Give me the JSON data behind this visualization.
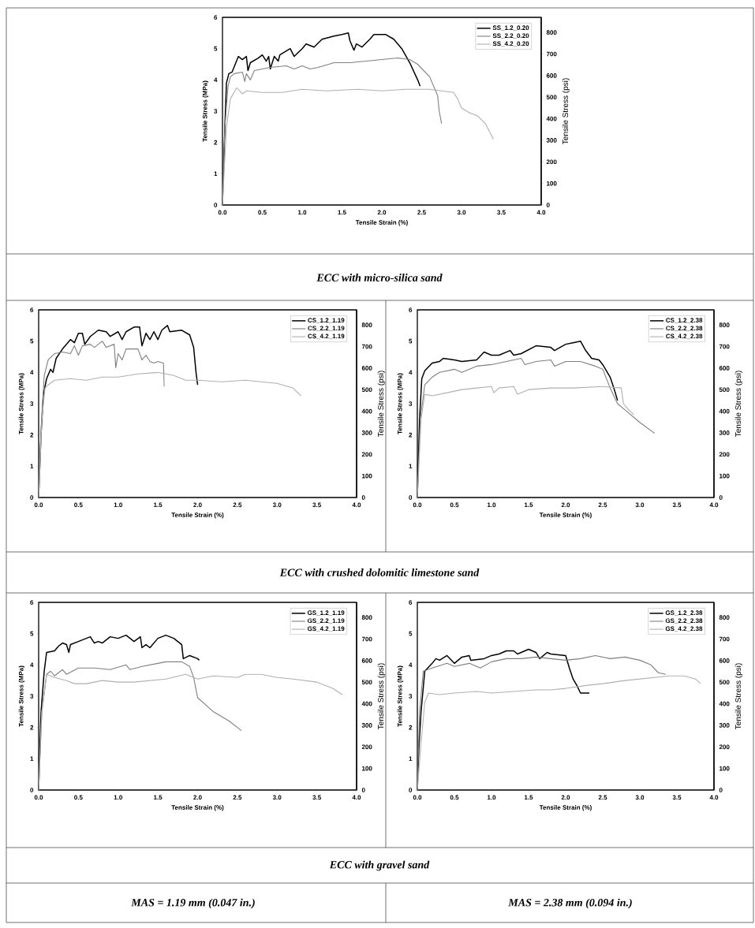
{
  "chart_data": [
    {
      "type": "line",
      "xlabel": "Tensile Strain (%)",
      "ylabel": "Tensile Stress (MPa)",
      "y2label": "Tensile Stress (psi)",
      "xlim": [
        0,
        4
      ],
      "xticks": [
        {
          "value": 0,
          "label": "0.0"
        },
        {
          "value": 0.5,
          "label": "0.5"
        },
        {
          "value": 1,
          "label": "1.0"
        },
        {
          "value": 1.5,
          "label": "1.5"
        },
        {
          "value": 2,
          "label": "2.0"
        },
        {
          "value": 2.5,
          "label": "2.5"
        },
        {
          "value": 3,
          "label": "3.0"
        },
        {
          "value": 3.5,
          "label": "3.5"
        },
        {
          "value": 4,
          "label": "4.0"
        }
      ],
      "ylim": [
        0,
        6
      ],
      "yticks": [
        0,
        1,
        2,
        3,
        4,
        5,
        6
      ],
      "y2lim": [
        0,
        870.2
      ],
      "y2ticks": [
        0,
        100,
        200,
        300,
        400,
        500,
        600,
        700,
        800
      ],
      "legend": "top right",
      "marker": "none",
      "line_style": "solid",
      "annotations": [
        "ECC with micro-silica sand"
      ],
      "series": [
        {
          "name": "SS_1.2_0.20",
          "color": "#000000",
          "x": [
            0,
            0.03,
            0.05,
            0.08,
            0.12,
            0.2,
            0.25,
            0.3,
            0.32,
            0.35,
            0.45,
            0.5,
            0.55,
            0.58,
            0.6,
            0.65,
            0.7,
            0.72,
            0.85,
            0.9,
            1.0,
            1.05,
            1.15,
            1.25,
            1.4,
            1.5,
            1.58,
            1.6,
            1.65,
            1.68,
            1.75,
            1.85,
            1.9,
            2.05,
            2.15,
            2.25,
            2.35,
            2.45,
            2.48
          ],
          "values": [
            0,
            2.5,
            3.9,
            4.2,
            4.25,
            4.75,
            4.65,
            4.75,
            4.3,
            4.55,
            4.7,
            4.8,
            4.6,
            4.75,
            4.35,
            4.75,
            4.6,
            4.8,
            5.0,
            4.75,
            5.0,
            5.15,
            5.05,
            5.3,
            5.4,
            5.45,
            5.5,
            5.25,
            4.95,
            5.15,
            5.05,
            5.3,
            5.45,
            5.45,
            5.3,
            5.0,
            4.55,
            4.0,
            3.8
          ]
        },
        {
          "name": "SS_2.2_0.20",
          "color": "#7f7f7f",
          "x": [
            0,
            0.03,
            0.07,
            0.1,
            0.15,
            0.25,
            0.28,
            0.3,
            0.35,
            0.4,
            0.5,
            0.6,
            0.8,
            0.9,
            1.0,
            1.1,
            1.2,
            1.4,
            1.6,
            1.8,
            2.0,
            2.2,
            2.35,
            2.45,
            2.6,
            2.7,
            2.72,
            2.75
          ],
          "values": [
            0,
            2.5,
            3.8,
            4.1,
            4.2,
            4.25,
            3.95,
            4.2,
            4.0,
            4.3,
            4.35,
            4.4,
            4.45,
            4.35,
            4.45,
            4.35,
            4.4,
            4.55,
            4.55,
            4.6,
            4.65,
            4.7,
            4.65,
            4.5,
            4.1,
            3.5,
            3.0,
            2.6
          ]
        },
        {
          "name": "SS_4.2_0.20",
          "color": "#b0b0b0",
          "x": [
            0,
            0.05,
            0.1,
            0.18,
            0.25,
            0.3,
            0.5,
            0.75,
            1.0,
            1.3,
            1.7,
            2.0,
            2.3,
            2.6,
            2.9,
            2.95,
            3.0,
            3.1,
            3.2,
            3.3,
            3.4
          ],
          "values": [
            0,
            2.5,
            3.4,
            3.75,
            3.55,
            3.65,
            3.6,
            3.6,
            3.7,
            3.65,
            3.7,
            3.65,
            3.7,
            3.7,
            3.6,
            3.4,
            3.1,
            2.95,
            2.85,
            2.6,
            2.1
          ]
        }
      ]
    },
    {
      "type": "line",
      "xlabel": "Tensile Strain (%)",
      "ylabel": "Tensile Stress (MPa)",
      "y2label": "Tensile Stress (psi)",
      "xlim": [
        0,
        4
      ],
      "xticks": [
        {
          "value": 0,
          "label": "0.0"
        },
        {
          "value": 0.5,
          "label": "0.5"
        },
        {
          "value": 1,
          "label": "1.0"
        },
        {
          "value": 1.5,
          "label": "1.5"
        },
        {
          "value": 2,
          "label": "2.0"
        },
        {
          "value": 2.5,
          "label": "2.5"
        },
        {
          "value": 3,
          "label": "3.0"
        },
        {
          "value": 3.5,
          "label": "3.5"
        },
        {
          "value": 4,
          "label": "4.0"
        }
      ],
      "ylim": [
        0,
        6
      ],
      "yticks": [
        0,
        1,
        2,
        3,
        4,
        5,
        6
      ],
      "y2lim": [
        0,
        870.2
      ],
      "y2ticks": [
        0,
        100,
        200,
        300,
        400,
        500,
        600,
        700,
        800
      ],
      "legend": "top right",
      "marker": "none",
      "line_style": "solid",
      "annotations": [
        "ECC with crushed dolomitic limestone sand"
      ],
      "series": [
        {
          "name": "CS_1.2_1.19",
          "color": "#000000",
          "x": [
            0,
            0.03,
            0.06,
            0.1,
            0.15,
            0.18,
            0.22,
            0.3,
            0.4,
            0.45,
            0.5,
            0.55,
            0.58,
            0.65,
            0.75,
            0.85,
            0.9,
            1.0,
            1.05,
            1.1,
            1.2,
            1.27,
            1.3,
            1.35,
            1.4,
            1.45,
            1.5,
            1.55,
            1.62,
            1.65,
            1.8,
            1.9,
            1.95,
            1.98,
            2.0
          ],
          "values": [
            0,
            2.0,
            3.3,
            3.8,
            4.1,
            4.0,
            4.45,
            4.75,
            5.05,
            4.95,
            5.25,
            5.25,
            4.9,
            5.15,
            5.35,
            5.3,
            5.15,
            5.3,
            5.05,
            5.3,
            5.45,
            5.45,
            4.85,
            5.25,
            5.05,
            5.3,
            5.05,
            5.35,
            5.5,
            5.3,
            5.35,
            5.2,
            4.8,
            4.0,
            3.6
          ]
        },
        {
          "name": "CS_2.2_1.19",
          "color": "#7f7f7f",
          "x": [
            0,
            0.03,
            0.07,
            0.12,
            0.2,
            0.3,
            0.4,
            0.45,
            0.5,
            0.55,
            0.65,
            0.7,
            0.8,
            0.85,
            0.95,
            0.97,
            1.0,
            1.05,
            1.1,
            1.25,
            1.3,
            1.35,
            1.4,
            1.45,
            1.5,
            1.57,
            1.58
          ],
          "values": [
            0,
            2.2,
            3.9,
            4.4,
            4.6,
            4.65,
            4.6,
            4.85,
            4.55,
            4.85,
            4.9,
            4.8,
            5.0,
            4.8,
            4.9,
            4.15,
            4.6,
            4.4,
            4.75,
            4.75,
            4.4,
            4.55,
            4.35,
            4.3,
            4.35,
            4.3,
            3.55
          ]
        },
        {
          "name": "CS_4.2_1.19",
          "color": "#b0b0b0",
          "x": [
            0,
            0.04,
            0.08,
            0.12,
            0.2,
            0.4,
            0.6,
            0.8,
            1.0,
            1.25,
            1.5,
            1.7,
            1.85,
            2.0,
            2.3,
            2.6,
            2.8,
            3.0,
            3.2,
            3.3
          ],
          "values": [
            0,
            2.5,
            3.5,
            3.6,
            3.75,
            3.8,
            3.75,
            3.85,
            3.85,
            3.95,
            4.0,
            3.9,
            3.75,
            3.75,
            3.7,
            3.75,
            3.7,
            3.65,
            3.5,
            3.25
          ]
        }
      ]
    },
    {
      "type": "line",
      "xlabel": "Tensile Strain (%)",
      "ylabel": "Tensile Stress (MPa)",
      "y2label": "Tensile Stress (psi)",
      "xlim": [
        0,
        4
      ],
      "xticks": [
        {
          "value": 0,
          "label": "0.0"
        },
        {
          "value": 0.5,
          "label": "0.5"
        },
        {
          "value": 1,
          "label": "1.0"
        },
        {
          "value": 1.5,
          "label": "1.5"
        },
        {
          "value": 2,
          "label": "2.0"
        },
        {
          "value": 2.5,
          "label": "2.5"
        },
        {
          "value": 3,
          "label": "3.0"
        },
        {
          "value": 3.5,
          "label": "3.5"
        },
        {
          "value": 4,
          "label": "4.0"
        }
      ],
      "ylim": [
        0,
        6
      ],
      "yticks": [
        0,
        1,
        2,
        3,
        4,
        5,
        6
      ],
      "y2lim": [
        0,
        870.2
      ],
      "y2ticks": [
        0,
        100,
        200,
        300,
        400,
        500,
        600,
        700,
        800
      ],
      "legend": "top right",
      "marker": "none",
      "line_style": "solid",
      "series": [
        {
          "name": "CS_1.2_2.38",
          "color": "#000000",
          "x": [
            0,
            0.03,
            0.06,
            0.1,
            0.2,
            0.3,
            0.35,
            0.5,
            0.6,
            0.8,
            0.9,
            1.0,
            1.1,
            1.25,
            1.3,
            1.4,
            1.6,
            1.8,
            1.85,
            2.0,
            2.1,
            2.2,
            2.27,
            2.35,
            2.45,
            2.5,
            2.6,
            2.65,
            2.7
          ],
          "values": [
            0,
            2.5,
            3.8,
            4.05,
            4.3,
            4.35,
            4.45,
            4.4,
            4.35,
            4.4,
            4.65,
            4.55,
            4.55,
            4.7,
            4.55,
            4.6,
            4.85,
            4.8,
            4.7,
            4.9,
            4.95,
            5.0,
            4.7,
            4.45,
            4.4,
            4.25,
            3.85,
            3.5,
            3.1
          ]
        },
        {
          "name": "CS_2.2_2.38",
          "color": "#7f7f7f",
          "x": [
            0,
            0.04,
            0.1,
            0.2,
            0.3,
            0.5,
            0.6,
            0.8,
            1.0,
            1.2,
            1.4,
            1.45,
            1.6,
            1.8,
            1.85,
            2.0,
            2.2,
            2.4,
            2.5,
            2.6,
            2.7,
            2.8,
            3.0,
            3.2
          ],
          "values": [
            0,
            2.5,
            3.6,
            3.85,
            4.0,
            4.1,
            4.0,
            4.2,
            4.25,
            4.35,
            4.45,
            4.25,
            4.35,
            4.4,
            4.2,
            4.35,
            4.35,
            4.2,
            4.1,
            3.5,
            3.0,
            2.8,
            2.4,
            2.05
          ]
        },
        {
          "name": "CS_4.2_2.38",
          "color": "#b0b0b0",
          "x": [
            0,
            0.05,
            0.1,
            0.2,
            0.4,
            0.6,
            0.8,
            1.0,
            1.03,
            1.1,
            1.3,
            1.35,
            1.5,
            1.8,
            2.1,
            2.5,
            2.75,
            2.78,
            2.85,
            2.92
          ],
          "values": [
            0,
            2.5,
            3.3,
            3.25,
            3.35,
            3.45,
            3.5,
            3.55,
            3.35,
            3.5,
            3.55,
            3.3,
            3.45,
            3.5,
            3.5,
            3.55,
            3.5,
            3.0,
            2.8,
            2.65
          ]
        }
      ]
    },
    {
      "type": "line",
      "xlabel": "Tensile Strain (%)",
      "ylabel": "Tensile Stress (MPa)",
      "y2label": "Tensile Stress (psi)",
      "xlim": [
        0,
        4
      ],
      "xticks": [
        {
          "value": 0,
          "label": "0.0"
        },
        {
          "value": 0.5,
          "label": "0.5"
        },
        {
          "value": 1,
          "label": "1.0"
        },
        {
          "value": 1.5,
          "label": "1.5"
        },
        {
          "value": 2,
          "label": "2.0"
        },
        {
          "value": 2.5,
          "label": "2.5"
        },
        {
          "value": 3,
          "label": "3.0"
        },
        {
          "value": 3.5,
          "label": "3.5"
        },
        {
          "value": 4,
          "label": "4.0"
        }
      ],
      "ylim": [
        0,
        6
      ],
      "yticks": [
        0,
        1,
        2,
        3,
        4,
        5,
        6
      ],
      "y2lim": [
        0,
        870.2
      ],
      "y2ticks": [
        0,
        100,
        200,
        300,
        400,
        500,
        600,
        700,
        800
      ],
      "legend": "top right",
      "marker": "none",
      "line_style": "solid",
      "annotations": [
        "ECC with gravel sand",
        "MAS = 1.19 mm (0.047 in.)"
      ],
      "series": [
        {
          "name": "GS_1.2_1.19",
          "color": "#000000",
          "x": [
            0,
            0.03,
            0.07,
            0.1,
            0.2,
            0.25,
            0.3,
            0.35,
            0.38,
            0.4,
            0.5,
            0.6,
            0.65,
            0.7,
            0.75,
            0.8,
            0.9,
            1.0,
            1.1,
            1.2,
            1.28,
            1.3,
            1.35,
            1.4,
            1.5,
            1.6,
            1.7,
            1.8,
            1.82,
            1.9,
            2.0,
            2.02
          ],
          "values": [
            0,
            2.5,
            3.8,
            4.4,
            4.45,
            4.6,
            4.7,
            4.65,
            4.4,
            4.65,
            4.75,
            4.85,
            4.9,
            4.7,
            4.75,
            4.7,
            4.9,
            4.85,
            4.95,
            4.75,
            4.9,
            4.55,
            4.65,
            4.55,
            4.85,
            4.95,
            4.85,
            4.65,
            4.2,
            4.3,
            4.2,
            4.15
          ]
        },
        {
          "name": "GS_2.2_1.19",
          "color": "#7f7f7f",
          "x": [
            0,
            0.04,
            0.1,
            0.15,
            0.2,
            0.3,
            0.35,
            0.5,
            0.7,
            0.9,
            1.1,
            1.15,
            1.3,
            1.5,
            1.6,
            1.8,
            1.9,
            1.95,
            2.0,
            2.2,
            2.4,
            2.55
          ],
          "values": [
            0,
            2.5,
            3.7,
            3.8,
            3.65,
            3.85,
            3.7,
            3.9,
            3.9,
            3.85,
            4.0,
            3.85,
            3.95,
            4.05,
            4.1,
            4.1,
            3.95,
            3.6,
            2.95,
            2.5,
            2.2,
            1.9
          ]
        },
        {
          "name": "GS_4.2_1.19",
          "color": "#b0b0b0",
          "x": [
            0,
            0.04,
            0.1,
            0.2,
            0.35,
            0.45,
            0.6,
            0.8,
            1.0,
            1.2,
            1.4,
            1.6,
            1.85,
            2.0,
            2.2,
            2.5,
            2.6,
            2.8,
            3.0,
            3.2,
            3.5,
            3.7,
            3.82
          ],
          "values": [
            0,
            2.5,
            3.7,
            3.6,
            3.5,
            3.4,
            3.4,
            3.5,
            3.45,
            3.45,
            3.5,
            3.55,
            3.7,
            3.55,
            3.65,
            3.6,
            3.7,
            3.7,
            3.6,
            3.55,
            3.45,
            3.25,
            3.05
          ]
        }
      ]
    },
    {
      "type": "line",
      "xlabel": "Tensile Strain (%)",
      "ylabel": "Tensile Stress (MPa)",
      "y2label": "Tensile Stress (psi)",
      "xlim": [
        0,
        4
      ],
      "xticks": [
        {
          "value": 0,
          "label": "0.0"
        },
        {
          "value": 0.5,
          "label": "0.5"
        },
        {
          "value": 1,
          "label": "1.0"
        },
        {
          "value": 1.5,
          "label": "1.5"
        },
        {
          "value": 2,
          "label": "2.0"
        },
        {
          "value": 2.5,
          "label": "2.5"
        },
        {
          "value": 3,
          "label": "3.0"
        },
        {
          "value": 3.5,
          "label": "3.5"
        },
        {
          "value": 4,
          "label": "4.0"
        }
      ],
      "ylim": [
        0,
        6
      ],
      "yticks": [
        0,
        1,
        2,
        3,
        4,
        5,
        6
      ],
      "y2lim": [
        0,
        870.2
      ],
      "y2ticks": [
        0,
        100,
        200,
        300,
        400,
        500,
        600,
        700,
        800
      ],
      "legend": "top right",
      "marker": "none",
      "line_style": "solid",
      "annotations": [
        "MAS = 2.38 mm (0.094 in.)"
      ],
      "series": [
        {
          "name": "GS_1.2_2.38",
          "color": "#000000",
          "x": [
            0,
            0.02,
            0.05,
            0.1,
            0.2,
            0.25,
            0.3,
            0.4,
            0.5,
            0.6,
            0.7,
            0.72,
            0.9,
            1.0,
            1.1,
            1.2,
            1.3,
            1.35,
            1.5,
            1.6,
            1.65,
            1.75,
            1.8,
            2.0,
            2.05,
            2.1,
            2.15,
            2.2,
            2.32
          ],
          "values": [
            0,
            1.3,
            2.5,
            3.8,
            4.05,
            4.2,
            4.15,
            4.3,
            4.05,
            4.25,
            4.3,
            4.15,
            4.2,
            4.3,
            4.35,
            4.45,
            4.45,
            4.35,
            4.5,
            4.4,
            4.2,
            4.4,
            4.35,
            4.3,
            3.9,
            3.55,
            3.35,
            3.1,
            3.1
          ]
        },
        {
          "name": "GS_2.2_2.38",
          "color": "#7f7f7f",
          "x": [
            0,
            0.03,
            0.08,
            0.2,
            0.4,
            0.5,
            0.7,
            0.85,
            1.0,
            1.2,
            1.4,
            1.6,
            1.8,
            2.0,
            2.2,
            2.4,
            2.6,
            2.8,
            3.0,
            3.15,
            3.25,
            3.35
          ],
          "values": [
            0,
            2.5,
            3.8,
            3.9,
            4.05,
            3.95,
            4.05,
            3.9,
            4.1,
            4.2,
            4.2,
            4.25,
            4.2,
            4.15,
            4.2,
            4.3,
            4.2,
            4.25,
            4.15,
            4.0,
            3.75,
            3.7
          ]
        },
        {
          "name": "GS_4.2_2.38",
          "color": "#b0b0b0",
          "x": [
            0,
            0.05,
            0.1,
            0.15,
            0.3,
            0.5,
            0.8,
            1.0,
            1.3,
            1.6,
            1.8,
            2.0,
            2.3,
            2.5,
            2.8,
            3.0,
            3.2,
            3.4,
            3.6,
            3.75,
            3.82
          ],
          "values": [
            0,
            1.5,
            2.8,
            3.1,
            3.05,
            3.1,
            3.15,
            3.1,
            3.15,
            3.2,
            3.2,
            3.25,
            3.35,
            3.4,
            3.5,
            3.55,
            3.6,
            3.65,
            3.65,
            3.55,
            3.4
          ]
        }
      ]
    }
  ]
}
